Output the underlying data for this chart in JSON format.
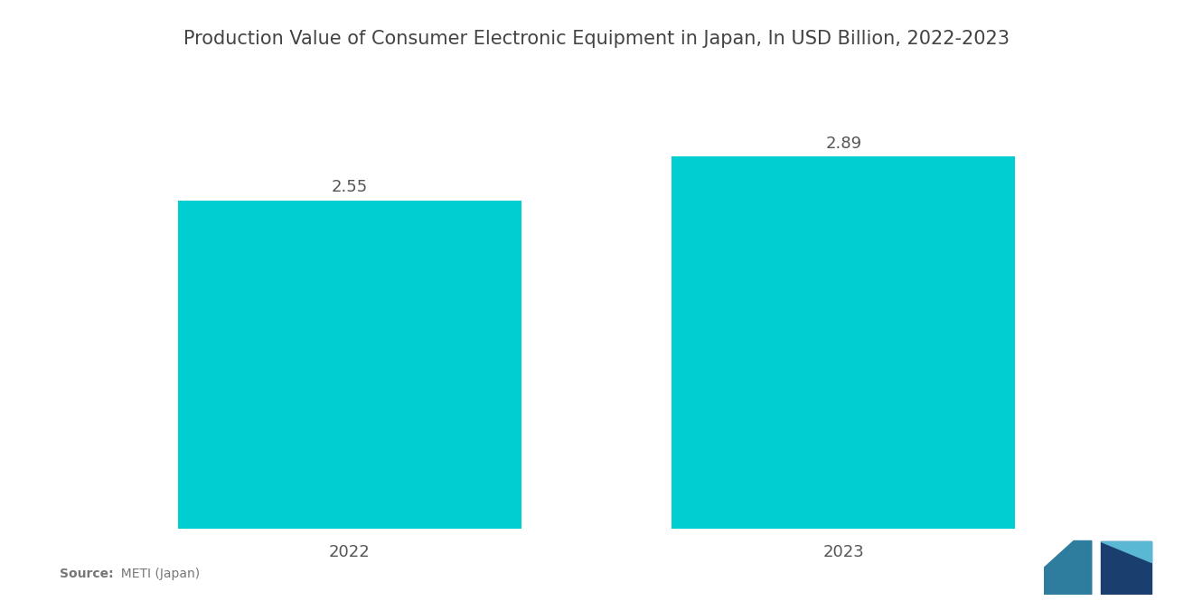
{
  "title": "Production Value of Consumer Electronic Equipment in Japan, In USD Billion, 2022-2023",
  "categories": [
    "2022",
    "2023"
  ],
  "values": [
    2.55,
    2.89
  ],
  "bar_color": "#00CED1",
  "background_color": "#ffffff",
  "title_fontsize": 15,
  "label_fontsize": 13,
  "value_fontsize": 13,
  "source_text_bold": "Source:",
  "source_text_normal": "  METI (Japan)",
  "ylim": [
    0,
    3.5
  ],
  "bar_width": 0.32,
  "x_positions": [
    0.27,
    0.73
  ]
}
